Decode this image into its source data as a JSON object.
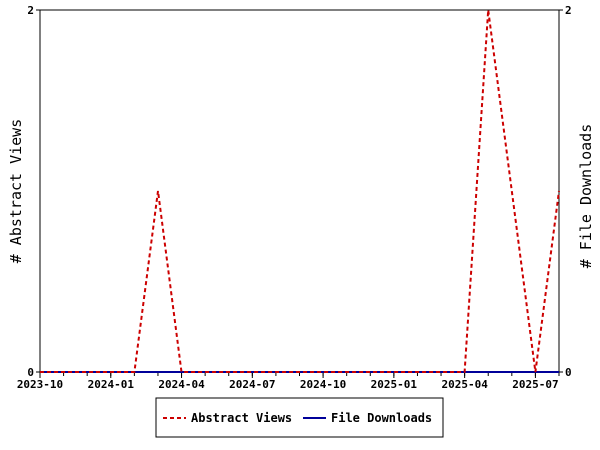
{
  "chart_data": {
    "type": "line",
    "xlabel": "",
    "ylabel_left": "# Abstract Views",
    "ylabel_right": "# File Downloads",
    "x_tick_labels": [
      "2023-10",
      "2024-01",
      "2024-04",
      "2024-07",
      "2024-10",
      "2025-01",
      "2025-04",
      "2025-07"
    ],
    "x_range": [
      "2023-10",
      "2025-08"
    ],
    "ylim_left": [
      0,
      2
    ],
    "ylim_right": [
      0,
      2
    ],
    "y_ticks_left": [
      "0",
      "2"
    ],
    "y_ticks_right": [
      "0",
      "2"
    ],
    "legend_position": "bottom-center",
    "grid": false,
    "series": [
      {
        "name": "Abstract Views",
        "color": "#cc0000",
        "style": "dashed",
        "x": [
          "2023-10",
          "2023-11",
          "2023-12",
          "2024-01",
          "2024-02",
          "2024-03",
          "2024-04",
          "2024-05",
          "2024-06",
          "2024-07",
          "2024-08",
          "2024-09",
          "2024-10",
          "2024-11",
          "2024-12",
          "2025-01",
          "2025-02",
          "2025-03",
          "2025-04",
          "2025-05",
          "2025-06",
          "2025-07",
          "2025-08"
        ],
        "values": [
          0,
          0,
          0,
          0,
          0,
          1,
          0,
          0,
          0,
          0,
          0,
          0,
          0,
          0,
          0,
          0,
          0,
          0,
          0,
          2,
          1,
          0,
          1
        ]
      },
      {
        "name": "File Downloads",
        "color": "#000099",
        "style": "solid",
        "x": [
          "2023-10",
          "2023-11",
          "2023-12",
          "2024-01",
          "2024-02",
          "2024-03",
          "2024-04",
          "2024-05",
          "2024-06",
          "2024-07",
          "2024-08",
          "2024-09",
          "2024-10",
          "2024-11",
          "2024-12",
          "2025-01",
          "2025-02",
          "2025-03",
          "2025-04",
          "2025-05",
          "2025-06",
          "2025-07",
          "2025-08"
        ],
        "values": [
          0,
          0,
          0,
          0,
          0,
          0,
          0,
          0,
          0,
          0,
          0,
          0,
          0,
          0,
          0,
          0,
          0,
          0,
          0,
          0,
          0,
          0,
          0
        ]
      }
    ]
  }
}
